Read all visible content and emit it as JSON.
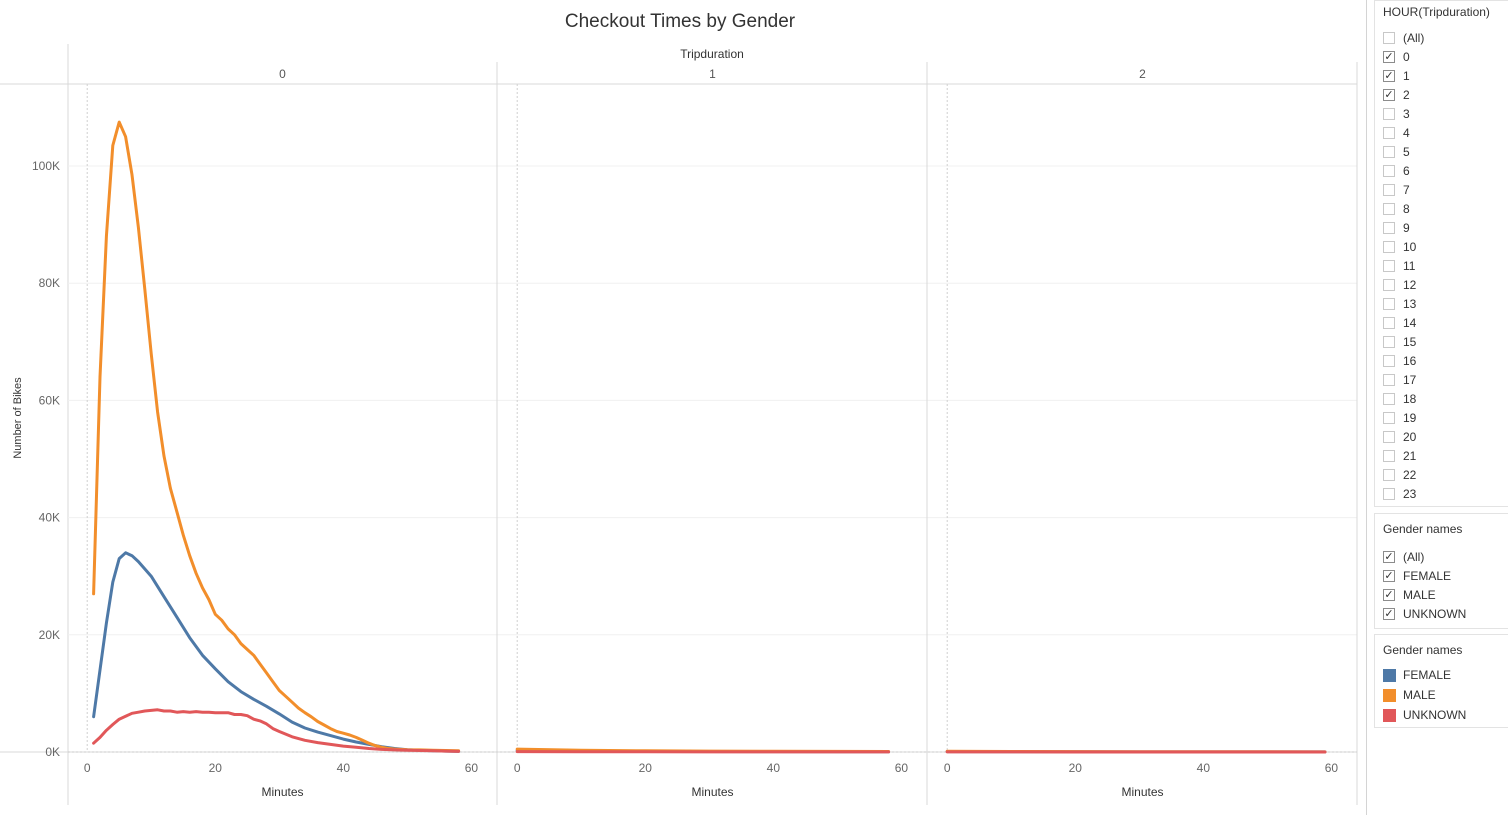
{
  "chart_data": {
    "type": "line",
    "title": "Checkout Times by Gender",
    "column_field_label": "Tripduration",
    "ylabel": "Number of Bikes",
    "xlabel": "Minutes",
    "ylim": [
      0,
      114000
    ],
    "xlim": [
      -3,
      64
    ],
    "y_ticks": [
      0,
      20000,
      40000,
      60000,
      80000,
      100000
    ],
    "y_tick_labels": [
      "0K",
      "20K",
      "40K",
      "60K",
      "80K",
      "100K"
    ],
    "x_ticks": [
      0,
      20,
      40,
      60
    ],
    "x_tick_labels": [
      "0",
      "20",
      "40",
      "60"
    ],
    "grid": true,
    "panels": [
      {
        "header": "0",
        "series": [
          {
            "name": "FEMALE",
            "color": "#4e79a7",
            "x": [
              1,
              3,
              4,
              5,
              6,
              7,
              8,
              10,
              12,
              14,
              16,
              18,
              20,
              22,
              24,
              26,
              28,
              30,
              32,
              34,
              36,
              38,
              40,
              42,
              44,
              46,
              48,
              50,
              52,
              54,
              56,
              58
            ],
            "y": [
              6000,
              22000,
              29000,
              33000,
              34000,
              33500,
              32500,
              30000,
              26500,
              23000,
              19500,
              16500,
              14200,
              12000,
              10300,
              9000,
              7800,
              6500,
              5100,
              4100,
              3400,
              2800,
              2200,
              1700,
              1300,
              900,
              600,
              400,
              300,
              200,
              150,
              100
            ]
          },
          {
            "name": "MALE",
            "color": "#f28e2b",
            "x": [
              1,
              2,
              3,
              4,
              5,
              6,
              7,
              8,
              9,
              10,
              11,
              12,
              13,
              14,
              15,
              16,
              17,
              18,
              19,
              20,
              21,
              22,
              23,
              24,
              25,
              26,
              27,
              28,
              29,
              30,
              31,
              32,
              33,
              34,
              35,
              36,
              37,
              38,
              39,
              40,
              41,
              42,
              43,
              44,
              45,
              46,
              47,
              48,
              50,
              52,
              54,
              56,
              58
            ],
            "y": [
              27000,
              64000,
              88000,
              103500,
              107500,
              105000,
              98500,
              89500,
              79000,
              68000,
              58000,
              50500,
              45000,
              41000,
              37000,
              33500,
              30500,
              28000,
              26000,
              23500,
              22500,
              21000,
              20000,
              18500,
              17500,
              16500,
              15000,
              13500,
              12000,
              10500,
              9500,
              8500,
              7500,
              6700,
              6000,
              5200,
              4600,
              4000,
              3500,
              3200,
              2900,
              2500,
              2000,
              1500,
              1100,
              800,
              600,
              500,
              400,
              350,
              300,
              250,
              200
            ]
          },
          {
            "name": "UNKNOWN",
            "color": "#e15759",
            "x": [
              1,
              2,
              3,
              4,
              5,
              6,
              7,
              8,
              9,
              10,
              11,
              12,
              13,
              14,
              15,
              16,
              17,
              18,
              19,
              20,
              21,
              22,
              23,
              24,
              25,
              26,
              27,
              28,
              29,
              30,
              32,
              34,
              36,
              38,
              40,
              42,
              44,
              46,
              48,
              50,
              52,
              54,
              56,
              58
            ],
            "y": [
              1500,
              2500,
              3700,
              4700,
              5600,
              6100,
              6600,
              6800,
              7000,
              7100,
              7200,
              7000,
              7000,
              6800,
              6900,
              6800,
              6900,
              6800,
              6800,
              6700,
              6700,
              6700,
              6400,
              6400,
              6200,
              5600,
              5300,
              4800,
              4000,
              3500,
              2600,
              2000,
              1600,
              1300,
              1000,
              800,
              600,
              450,
              350,
              300,
              250,
              200,
              150,
              100
            ]
          }
        ]
      },
      {
        "header": "1",
        "series": [
          {
            "name": "FEMALE",
            "color": "#4e79a7",
            "x": [
              0,
              10,
              20,
              30,
              40,
              50,
              58
            ],
            "y": [
              250,
              150,
              100,
              80,
              60,
              50,
              40
            ]
          },
          {
            "name": "MALE",
            "color": "#f28e2b",
            "x": [
              0,
              10,
              20,
              30,
              40,
              50,
              58
            ],
            "y": [
              500,
              300,
              200,
              150,
              120,
              100,
              80
            ]
          },
          {
            "name": "UNKNOWN",
            "color": "#e15759",
            "x": [
              0,
              10,
              20,
              30,
              40,
              50,
              58
            ],
            "y": [
              60,
              40,
              30,
              20,
              20,
              15,
              10
            ]
          }
        ]
      },
      {
        "header": "2",
        "series": [
          {
            "name": "FEMALE",
            "color": "#4e79a7",
            "x": [
              0,
              10,
              20,
              30,
              40,
              50,
              59
            ],
            "y": [
              60,
              40,
              30,
              25,
              20,
              15,
              10
            ]
          },
          {
            "name": "MALE",
            "color": "#f28e2b",
            "x": [
              0,
              10,
              20,
              30,
              40,
              50,
              59
            ],
            "y": [
              120,
              80,
              60,
              50,
              40,
              30,
              20
            ]
          },
          {
            "name": "UNKNOWN",
            "color": "#e15759",
            "x": [
              0,
              10,
              20,
              30,
              40,
              50,
              59
            ],
            "y": [
              15,
              10,
              8,
              6,
              5,
              4,
              3
            ]
          }
        ]
      }
    ]
  },
  "filters": {
    "hour": {
      "title": "HOUR(Tripduration)",
      "items": [
        {
          "label": "(All)",
          "checked": false
        },
        {
          "label": "0",
          "checked": true
        },
        {
          "label": "1",
          "checked": true
        },
        {
          "label": "2",
          "checked": true
        },
        {
          "label": "3",
          "checked": false
        },
        {
          "label": "4",
          "checked": false
        },
        {
          "label": "5",
          "checked": false
        },
        {
          "label": "6",
          "checked": false
        },
        {
          "label": "7",
          "checked": false
        },
        {
          "label": "8",
          "checked": false
        },
        {
          "label": "9",
          "checked": false
        },
        {
          "label": "10",
          "checked": false
        },
        {
          "label": "11",
          "checked": false
        },
        {
          "label": "12",
          "checked": false
        },
        {
          "label": "13",
          "checked": false
        },
        {
          "label": "14",
          "checked": false
        },
        {
          "label": "15",
          "checked": false
        },
        {
          "label": "16",
          "checked": false
        },
        {
          "label": "17",
          "checked": false
        },
        {
          "label": "18",
          "checked": false
        },
        {
          "label": "19",
          "checked": false
        },
        {
          "label": "20",
          "checked": false
        },
        {
          "label": "21",
          "checked": false
        },
        {
          "label": "22",
          "checked": false
        },
        {
          "label": "23",
          "checked": false
        }
      ]
    },
    "gender": {
      "title": "Gender names",
      "items": [
        {
          "label": "(All)",
          "checked": true
        },
        {
          "label": "FEMALE",
          "checked": true
        },
        {
          "label": "MALE",
          "checked": true
        },
        {
          "label": "UNKNOWN",
          "checked": true
        }
      ]
    }
  },
  "legend": {
    "title": "Gender names",
    "items": [
      {
        "label": "FEMALE",
        "color": "#4e79a7"
      },
      {
        "label": "MALE",
        "color": "#f28e2b"
      },
      {
        "label": "UNKNOWN",
        "color": "#e15759"
      }
    ]
  }
}
